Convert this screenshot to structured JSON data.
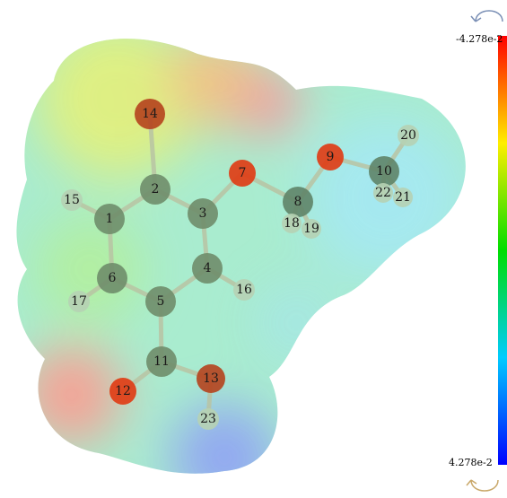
{
  "scale": {
    "top_label": "-4.278e-2",
    "bottom_label": "4.278e-2"
  },
  "atoms": [
    "1",
    "2",
    "3",
    "4",
    "5",
    "6",
    "7",
    "8",
    "9",
    "10",
    "11",
    "12",
    "13",
    "14",
    "15",
    "16",
    "17",
    "18",
    "19",
    "20",
    "21",
    "22",
    "23"
  ]
}
